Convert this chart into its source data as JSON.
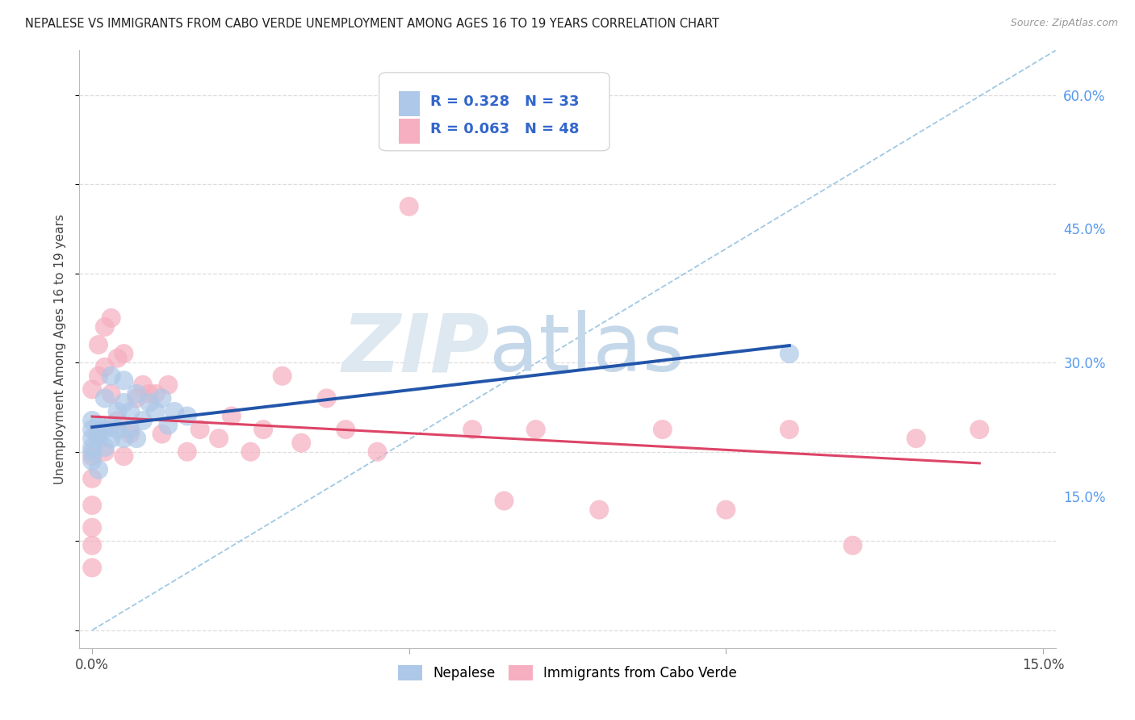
{
  "title": "NEPALESE VS IMMIGRANTS FROM CABO VERDE UNEMPLOYMENT AMONG AGES 16 TO 19 YEARS CORRELATION CHART",
  "source": "Source: ZipAtlas.com",
  "ylabel": "Unemployment Among Ages 16 to 19 years",
  "xlim": [
    -0.002,
    0.152
  ],
  "ylim": [
    -0.02,
    0.65
  ],
  "xtick_positions": [
    0.0,
    0.05,
    0.1,
    0.15
  ],
  "xtick_labels": [
    "0.0%",
    "",
    "",
    "15.0%"
  ],
  "ytick_positions": [
    0.15,
    0.3,
    0.45,
    0.6
  ],
  "ytick_labels": [
    "15.0%",
    "30.0%",
    "45.0%",
    "60.0%"
  ],
  "R1": 0.328,
  "N1": 33,
  "R2": 0.063,
  "N2": 48,
  "color1": "#adc8e8",
  "color2": "#f5afc0",
  "line_color1": "#2255aa",
  "line_color2": "#dd4466",
  "diag_color": "#88bbdd",
  "background_color": "#ffffff",
  "grid_color": "#dddddd",
  "legend1_label": "Nepalese",
  "legend2_label": "Immigrants from Cabo Verde",
  "nep_x": [
    0.0,
    0.0,
    0.0,
    0.0,
    0.0,
    0.0,
    0.001,
    0.001,
    0.001,
    0.001,
    0.002,
    0.002,
    0.002,
    0.003,
    0.003,
    0.003,
    0.004,
    0.004,
    0.005,
    0.005,
    0.005,
    0.006,
    0.006,
    0.007,
    0.007,
    0.008,
    0.009,
    0.01,
    0.011,
    0.012,
    0.013,
    0.015,
    0.11
  ],
  "nep_y": [
    0.2,
    0.215,
    0.225,
    0.235,
    0.205,
    0.19,
    0.22,
    0.23,
    0.215,
    0.18,
    0.225,
    0.26,
    0.205,
    0.215,
    0.23,
    0.285,
    0.225,
    0.245,
    0.215,
    0.255,
    0.28,
    0.225,
    0.245,
    0.215,
    0.265,
    0.235,
    0.255,
    0.245,
    0.26,
    0.23,
    0.245,
    0.24,
    0.31
  ],
  "cv_x": [
    0.0,
    0.0,
    0.0,
    0.0,
    0.0,
    0.0,
    0.0,
    0.001,
    0.001,
    0.001,
    0.002,
    0.002,
    0.002,
    0.003,
    0.003,
    0.004,
    0.004,
    0.005,
    0.005,
    0.006,
    0.007,
    0.008,
    0.009,
    0.01,
    0.011,
    0.012,
    0.015,
    0.017,
    0.02,
    0.022,
    0.025,
    0.027,
    0.03,
    0.033,
    0.037,
    0.04,
    0.045,
    0.05,
    0.06,
    0.065,
    0.07,
    0.08,
    0.09,
    0.1,
    0.11,
    0.12,
    0.13,
    0.14
  ],
  "cv_y": [
    0.07,
    0.095,
    0.115,
    0.14,
    0.17,
    0.195,
    0.27,
    0.22,
    0.285,
    0.32,
    0.2,
    0.295,
    0.34,
    0.265,
    0.35,
    0.235,
    0.305,
    0.31,
    0.195,
    0.22,
    0.26,
    0.275,
    0.265,
    0.265,
    0.22,
    0.275,
    0.2,
    0.225,
    0.215,
    0.24,
    0.2,
    0.225,
    0.285,
    0.21,
    0.26,
    0.225,
    0.2,
    0.475,
    0.225,
    0.145,
    0.225,
    0.135,
    0.225,
    0.135,
    0.225,
    0.095,
    0.215,
    0.225
  ]
}
